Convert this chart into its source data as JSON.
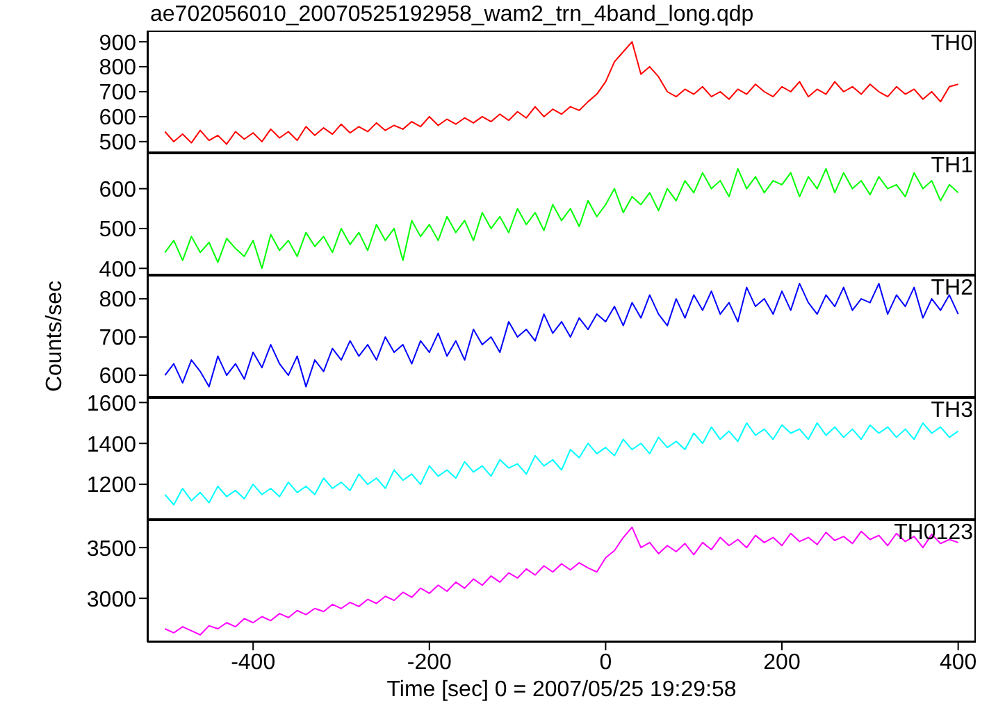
{
  "chart_data": [
    {
      "type": "line",
      "title": "ae702056010_20070525192958_wam2_trn_4band_long.qdp",
      "annotations": [
        "TH0"
      ],
      "tick_labels": "y",
      "xlim": [
        -520,
        420
      ],
      "xticks": [
        -400,
        -200,
        0,
        200,
        400
      ],
      "ylim": [
        455,
        945
      ],
      "yticks": [
        500,
        600,
        700,
        800,
        900
      ],
      "x": [
        -500,
        -490,
        -480,
        -470,
        -460,
        -450,
        -440,
        -430,
        -420,
        -410,
        -400,
        -390,
        -380,
        -370,
        -360,
        -350,
        -340,
        -330,
        -320,
        -310,
        -300,
        -290,
        -280,
        -270,
        -260,
        -250,
        -240,
        -230,
        -220,
        -210,
        -200,
        -190,
        -180,
        -170,
        -160,
        -150,
        -140,
        -130,
        -120,
        -110,
        -100,
        -90,
        -80,
        -70,
        -60,
        -50,
        -40,
        -30,
        -20,
        -10,
        0,
        10,
        20,
        30,
        40,
        50,
        60,
        70,
        80,
        90,
        100,
        110,
        120,
        130,
        140,
        150,
        160,
        170,
        180,
        190,
        200,
        210,
        220,
        230,
        240,
        250,
        260,
        270,
        280,
        290,
        300,
        310,
        320,
        330,
        340,
        350,
        360,
        370,
        380,
        390,
        400
      ],
      "series": [
        {
          "color": "#ff0000",
          "values": [
            540,
            500,
            530,
            495,
            545,
            505,
            525,
            490,
            540,
            510,
            535,
            500,
            550,
            515,
            540,
            505,
            560,
            525,
            555,
            530,
            570,
            535,
            560,
            540,
            575,
            545,
            565,
            550,
            580,
            560,
            600,
            565,
            590,
            570,
            595,
            575,
            600,
            580,
            610,
            585,
            620,
            595,
            640,
            600,
            630,
            610,
            640,
            625,
            660,
            690,
            740,
            820,
            860,
            900,
            770,
            800,
            760,
            700,
            680,
            710,
            690,
            720,
            680,
            700,
            670,
            710,
            690,
            730,
            700,
            680,
            720,
            700,
            740,
            680,
            710,
            690,
            740,
            700,
            720,
            690,
            730,
            700,
            680,
            720,
            690,
            710,
            670,
            700,
            660,
            720,
            730
          ]
        }
      ]
    },
    {
      "type": "line",
      "annotations": [
        "TH1"
      ],
      "tick_labels": "y",
      "xlim": [
        -520,
        420
      ],
      "xticks": [
        -400,
        -200,
        0,
        200,
        400
      ],
      "ylim": [
        383,
        690
      ],
      "yticks": [
        400,
        500,
        600
      ],
      "x": [
        -500,
        -490,
        -480,
        -470,
        -460,
        -450,
        -440,
        -430,
        -420,
        -410,
        -400,
        -390,
        -380,
        -370,
        -360,
        -350,
        -340,
        -330,
        -320,
        -310,
        -300,
        -290,
        -280,
        -270,
        -260,
        -250,
        -240,
        -230,
        -220,
        -210,
        -200,
        -190,
        -180,
        -170,
        -160,
        -150,
        -140,
        -130,
        -120,
        -110,
        -100,
        -90,
        -80,
        -70,
        -60,
        -50,
        -40,
        -30,
        -20,
        -10,
        0,
        10,
        20,
        30,
        40,
        50,
        60,
        70,
        80,
        90,
        100,
        110,
        120,
        130,
        140,
        150,
        160,
        170,
        180,
        190,
        200,
        210,
        220,
        230,
        240,
        250,
        260,
        270,
        280,
        290,
        300,
        310,
        320,
        330,
        340,
        350,
        360,
        370,
        380,
        390,
        400
      ],
      "series": [
        {
          "color": "#00ff00",
          "values": [
            440,
            470,
            420,
            480,
            440,
            465,
            415,
            475,
            450,
            430,
            470,
            400,
            485,
            445,
            470,
            430,
            490,
            455,
            480,
            440,
            500,
            460,
            490,
            445,
            510,
            470,
            500,
            420,
            520,
            480,
            510,
            470,
            530,
            490,
            520,
            470,
            540,
            500,
            530,
            490,
            550,
            510,
            540,
            495,
            560,
            520,
            550,
            505,
            570,
            530,
            560,
            600,
            540,
            580,
            560,
            590,
            545,
            600,
            570,
            620,
            590,
            640,
            600,
            620,
            580,
            650,
            600,
            630,
            590,
            620,
            610,
            640,
            580,
            630,
            600,
            650,
            590,
            640,
            600,
            620,
            585,
            630,
            600,
            610,
            580,
            640,
            600,
            620,
            570,
            610,
            590
          ]
        }
      ]
    },
    {
      "type": "line",
      "annotations": [
        "TH2"
      ],
      "ylabel": "Counts/sec",
      "tick_labels": "y",
      "xlim": [
        -520,
        420
      ],
      "xticks": [
        -400,
        -200,
        0,
        200,
        400
      ],
      "ylim": [
        542,
        862
      ],
      "yticks": [
        600,
        700,
        800
      ],
      "x": [
        -500,
        -490,
        -480,
        -470,
        -460,
        -450,
        -440,
        -430,
        -420,
        -410,
        -400,
        -390,
        -380,
        -370,
        -360,
        -350,
        -340,
        -330,
        -320,
        -310,
        -300,
        -290,
        -280,
        -270,
        -260,
        -250,
        -240,
        -230,
        -220,
        -210,
        -200,
        -190,
        -180,
        -170,
        -160,
        -150,
        -140,
        -130,
        -120,
        -110,
        -100,
        -90,
        -80,
        -70,
        -60,
        -50,
        -40,
        -30,
        -20,
        -10,
        0,
        10,
        20,
        30,
        40,
        50,
        60,
        70,
        80,
        90,
        100,
        110,
        120,
        130,
        140,
        150,
        160,
        170,
        180,
        190,
        200,
        210,
        220,
        230,
        240,
        250,
        260,
        270,
        280,
        290,
        300,
        310,
        320,
        330,
        340,
        350,
        360,
        370,
        380,
        390,
        400
      ],
      "series": [
        {
          "color": "#0000ff",
          "values": [
            600,
            630,
            580,
            640,
            610,
            570,
            650,
            600,
            630,
            590,
            660,
            620,
            680,
            630,
            600,
            650,
            570,
            640,
            610,
            670,
            640,
            690,
            650,
            680,
            640,
            700,
            660,
            680,
            630,
            690,
            660,
            710,
            650,
            690,
            640,
            720,
            680,
            700,
            660,
            740,
            700,
            720,
            690,
            760,
            710,
            740,
            700,
            750,
            720,
            760,
            740,
            780,
            730,
            790,
            750,
            810,
            760,
            730,
            800,
            750,
            810,
            770,
            820,
            760,
            790,
            740,
            830,
            780,
            800,
            760,
            820,
            770,
            840,
            790,
            760,
            810,
            780,
            830,
            770,
            800,
            790,
            840,
            760,
            810,
            780,
            830,
            750,
            800,
            770,
            810,
            760
          ]
        }
      ]
    },
    {
      "type": "line",
      "annotations": [
        "TH3"
      ],
      "tick_labels": "y",
      "xlim": [
        -520,
        420
      ],
      "xticks": [
        -400,
        -200,
        0,
        200,
        400
      ],
      "ylim": [
        1027,
        1625
      ],
      "yticks": [
        1200,
        1400,
        1600
      ],
      "x": [
        -500,
        -490,
        -480,
        -470,
        -460,
        -450,
        -440,
        -430,
        -420,
        -410,
        -400,
        -390,
        -380,
        -370,
        -360,
        -350,
        -340,
        -330,
        -320,
        -310,
        -300,
        -290,
        -280,
        -270,
        -260,
        -250,
        -240,
        -230,
        -220,
        -210,
        -200,
        -190,
        -180,
        -170,
        -160,
        -150,
        -140,
        -130,
        -120,
        -110,
        -100,
        -90,
        -80,
        -70,
        -60,
        -50,
        -40,
        -30,
        -20,
        -10,
        0,
        10,
        20,
        30,
        40,
        50,
        60,
        70,
        80,
        90,
        100,
        110,
        120,
        130,
        140,
        150,
        160,
        170,
        180,
        190,
        200,
        210,
        220,
        230,
        240,
        250,
        260,
        270,
        280,
        290,
        300,
        310,
        320,
        330,
        340,
        350,
        360,
        370,
        380,
        390,
        400
      ],
      "series": [
        {
          "color": "#00ffff",
          "values": [
            1150,
            1100,
            1180,
            1120,
            1160,
            1110,
            1190,
            1140,
            1170,
            1130,
            1200,
            1150,
            1180,
            1140,
            1210,
            1160,
            1190,
            1150,
            1230,
            1180,
            1210,
            1170,
            1250,
            1200,
            1230,
            1180,
            1270,
            1220,
            1250,
            1200,
            1290,
            1240,
            1270,
            1230,
            1310,
            1260,
            1290,
            1240,
            1320,
            1280,
            1300,
            1250,
            1340,
            1290,
            1320,
            1270,
            1370,
            1330,
            1400,
            1350,
            1380,
            1340,
            1420,
            1370,
            1400,
            1350,
            1430,
            1380,
            1410,
            1370,
            1450,
            1400,
            1480,
            1420,
            1460,
            1410,
            1500,
            1440,
            1470,
            1420,
            1490,
            1450,
            1470,
            1420,
            1500,
            1440,
            1480,
            1430,
            1470,
            1420,
            1490,
            1450,
            1480,
            1430,
            1470,
            1420,
            1500,
            1450,
            1480,
            1430,
            1460
          ]
        }
      ]
    },
    {
      "type": "line",
      "annotations": [
        "TH0123"
      ],
      "xlabel": "Time [sec] 0 = 2007/05/25 19:29:58",
      "xlim": [
        -520,
        420
      ],
      "xticks": [
        -400,
        -200,
        0,
        200,
        400
      ],
      "ylim": [
        2570,
        3775
      ],
      "yticks": [
        3000,
        3500
      ],
      "x": [
        -500,
        -490,
        -480,
        -470,
        -460,
        -450,
        -440,
        -430,
        -420,
        -410,
        -400,
        -390,
        -380,
        -370,
        -360,
        -350,
        -340,
        -330,
        -320,
        -310,
        -300,
        -290,
        -280,
        -270,
        -260,
        -250,
        -240,
        -230,
        -220,
        -210,
        -200,
        -190,
        -180,
        -170,
        -160,
        -150,
        -140,
        -130,
        -120,
        -110,
        -100,
        -90,
        -80,
        -70,
        -60,
        -50,
        -40,
        -30,
        -20,
        -10,
        0,
        10,
        20,
        30,
        40,
        50,
        60,
        70,
        80,
        90,
        100,
        110,
        120,
        130,
        140,
        150,
        160,
        170,
        180,
        190,
        200,
        210,
        220,
        230,
        240,
        250,
        260,
        270,
        280,
        290,
        300,
        310,
        320,
        330,
        340,
        350,
        360,
        370,
        380,
        390,
        400
      ],
      "series": [
        {
          "color": "#ff00ff",
          "values": [
            2700,
            2660,
            2720,
            2680,
            2640,
            2730,
            2700,
            2760,
            2720,
            2800,
            2760,
            2820,
            2780,
            2850,
            2810,
            2880,
            2840,
            2900,
            2870,
            2940,
            2900,
            2960,
            2920,
            2990,
            2950,
            3020,
            2980,
            3060,
            3010,
            3100,
            3050,
            3130,
            3070,
            3160,
            3100,
            3190,
            3130,
            3220,
            3160,
            3250,
            3200,
            3290,
            3230,
            3320,
            3260,
            3340,
            3280,
            3350,
            3300,
            3260,
            3400,
            3470,
            3600,
            3700,
            3500,
            3550,
            3440,
            3520,
            3460,
            3540,
            3430,
            3550,
            3480,
            3600,
            3520,
            3580,
            3500,
            3620,
            3550,
            3600,
            3520,
            3640,
            3560,
            3600,
            3530,
            3650,
            3570,
            3610,
            3540,
            3660,
            3580,
            3620,
            3520,
            3640,
            3560,
            3610,
            3500,
            3630,
            3540,
            3580,
            3550
          ]
        }
      ]
    }
  ]
}
